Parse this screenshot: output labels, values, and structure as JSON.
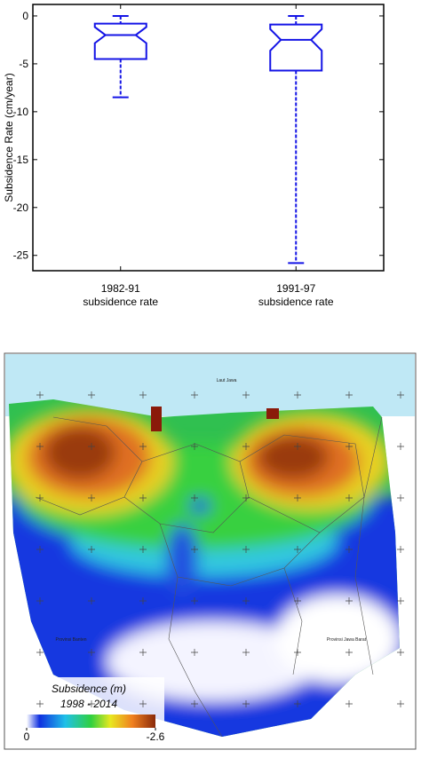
{
  "chart_data": {
    "type": "box",
    "y_label": "Subsidence Rate (cm/year)",
    "categories": [
      "1982-91",
      "1991-97"
    ],
    "category_sublabels": [
      "subsidence rate",
      "subsidence rate"
    ],
    "color": "#1414e6",
    "boxes": [
      {
        "min": -8.5,
        "q1": -4.5,
        "median": -2.0,
        "q3": -0.8,
        "max": 0
      },
      {
        "min": -25.8,
        "q1": -5.7,
        "median": -2.5,
        "q3": -0.9,
        "max": 0
      }
    ],
    "ylim": [
      -26.6,
      1.2
    ],
    "yticks": [
      0,
      -5,
      -10,
      -15,
      -20,
      -25
    ]
  },
  "map": {
    "sea_label": "Laut Jawa",
    "west_label": "Provinsi Banten",
    "east_label": "Provinsi Jawa Barat",
    "legend_title": "Subsidence (m)",
    "legend_period": "1998 - 2014",
    "colorbar_ticks": [
      0,
      -2.6
    ]
  }
}
